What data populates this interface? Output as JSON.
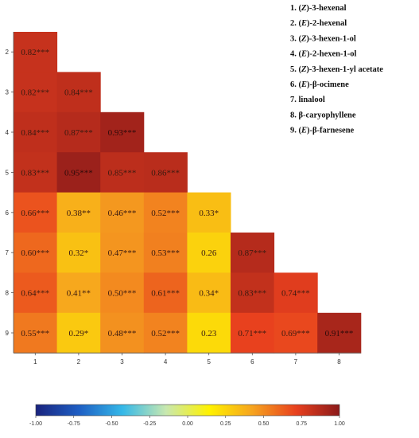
{
  "chart_data": {
    "type": "heatmap",
    "row_labels": [
      "2",
      "3",
      "4",
      "5",
      "6",
      "7",
      "8",
      "9"
    ],
    "col_labels": [
      "1",
      "2",
      "3",
      "4",
      "5",
      "6",
      "7",
      "8"
    ],
    "cells": [
      [
        {
          "v": 0.82,
          "t": "0.82***"
        }
      ],
      [
        {
          "v": 0.82,
          "t": "0.82***"
        },
        {
          "v": 0.84,
          "t": "0.84***"
        }
      ],
      [
        {
          "v": 0.84,
          "t": "0.84***"
        },
        {
          "v": 0.87,
          "t": "0.87***"
        },
        {
          "v": 0.93,
          "t": "0.93***"
        }
      ],
      [
        {
          "v": 0.83,
          "t": "0.83***"
        },
        {
          "v": 0.95,
          "t": "0.95***"
        },
        {
          "v": 0.85,
          "t": "0.85***"
        },
        {
          "v": 0.86,
          "t": "0.86***"
        }
      ],
      [
        {
          "v": 0.66,
          "t": "0.66***"
        },
        {
          "v": 0.38,
          "t": "0.38**"
        },
        {
          "v": 0.46,
          "t": "0.46***"
        },
        {
          "v": 0.52,
          "t": "0.52***"
        },
        {
          "v": 0.33,
          "t": "0.33*"
        }
      ],
      [
        {
          "v": 0.6,
          "t": "0.60***"
        },
        {
          "v": 0.32,
          "t": "0.32*"
        },
        {
          "v": 0.47,
          "t": "0.47***"
        },
        {
          "v": 0.53,
          "t": "0.53***"
        },
        {
          "v": 0.26,
          "t": "0.26"
        },
        {
          "v": 0.87,
          "t": "0.87***"
        }
      ],
      [
        {
          "v": 0.64,
          "t": "0.64***"
        },
        {
          "v": 0.41,
          "t": "0.41**"
        },
        {
          "v": 0.5,
          "t": "0.50***"
        },
        {
          "v": 0.61,
          "t": "0.61***"
        },
        {
          "v": 0.34,
          "t": "0.34*"
        },
        {
          "v": 0.83,
          "t": "0.83***"
        },
        {
          "v": 0.74,
          "t": "0.74***"
        }
      ],
      [
        {
          "v": 0.55,
          "t": "0.55***"
        },
        {
          "v": 0.29,
          "t": "0.29*"
        },
        {
          "v": 0.48,
          "t": "0.48***"
        },
        {
          "v": 0.52,
          "t": "0.52***"
        },
        {
          "v": 0.23,
          "t": "0.23"
        },
        {
          "v": 0.71,
          "t": "0.71***"
        },
        {
          "v": 0.69,
          "t": "0.69***"
        },
        {
          "v": 0.91,
          "t": "0.91***"
        }
      ]
    ],
    "colorbar": {
      "min": -1.0,
      "max": 1.0,
      "ticks": [
        "-1.00",
        "-0.75",
        "-0.50",
        "-0.25",
        "0.00",
        "0.25",
        "0.50",
        "0.75",
        "1.00"
      ]
    },
    "legend": [
      {
        "num": "1.",
        "pre": "(",
        "ital": "Z",
        "post": ")-3-hexenal"
      },
      {
        "num": "2.",
        "pre": "(",
        "ital": "E",
        "post": ")-2-hexenal"
      },
      {
        "num": "3.",
        "pre": "(",
        "ital": "Z",
        "post": ")-3-hexen-1-ol"
      },
      {
        "num": "4.",
        "pre": "(",
        "ital": "E",
        "post": ")-2-hexen-1-ol"
      },
      {
        "num": "5.",
        "pre": "(",
        "ital": "Z",
        "post": ")-3-hexen-1-yl acetate"
      },
      {
        "num": "6.",
        "pre": "(",
        "ital": "E",
        "post": ")-β-ocimene"
      },
      {
        "num": "7.",
        "pre": "",
        "ital": "",
        "post": "linalool"
      },
      {
        "num": "8.",
        "pre": "",
        "ital": "",
        "post": "β-caryophyllene"
      },
      {
        "num": "9.",
        "pre": "(",
        "ital": "E",
        "post": ")-β-farnesene"
      }
    ],
    "colors": {
      "scale": [
        "#1a237e",
        "#1e5fc4",
        "#35b8e8",
        "#c8e8b0",
        "#fff200",
        "#f6a31f",
        "#e8401e",
        "#8b1a1a"
      ]
    }
  }
}
